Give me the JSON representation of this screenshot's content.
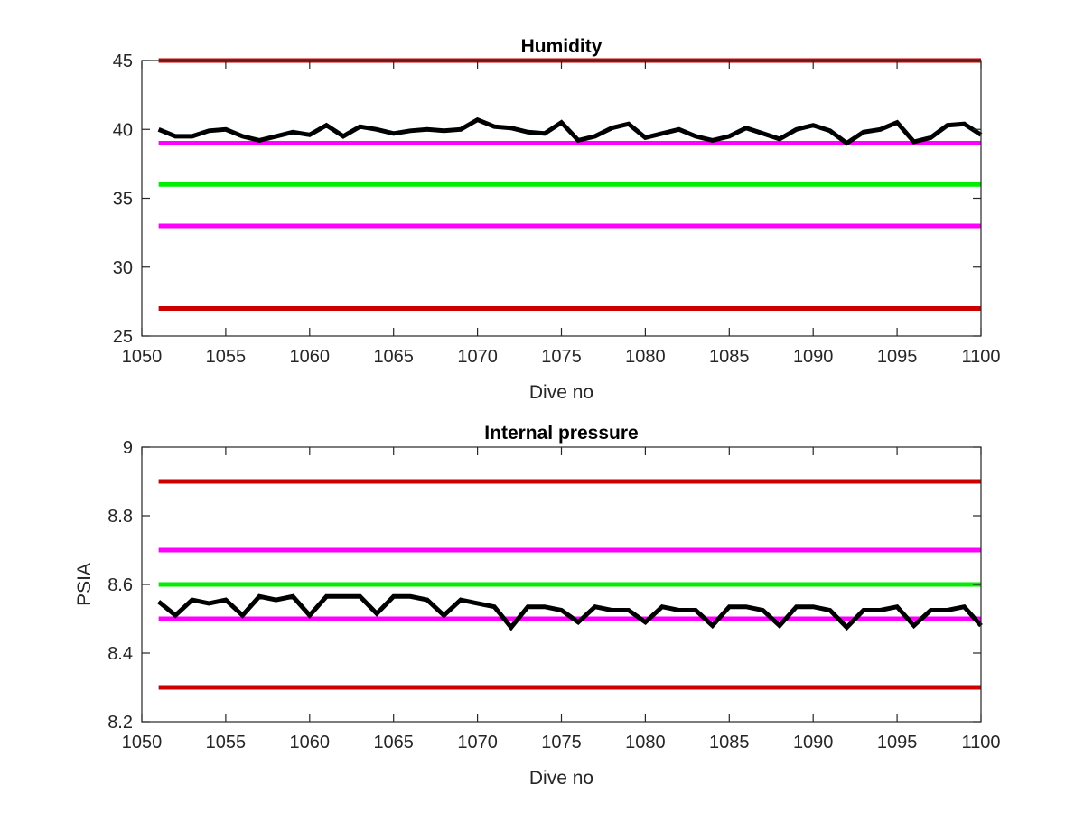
{
  "colors": {
    "data_line": "#000000",
    "red_limit": "#cc0000",
    "magenta_limit": "#ff00ff",
    "green_target": "#00ee00",
    "axis": "#262626"
  },
  "chart_data": [
    {
      "type": "line",
      "title": "Humidity",
      "xlabel": "Dive no",
      "ylabel": "",
      "xlim": [
        1050,
        1100
      ],
      "ylim": [
        25,
        45
      ],
      "xticks": [
        "1050",
        "1055",
        "1060",
        "1065",
        "1070",
        "1075",
        "1080",
        "1085",
        "1090",
        "1095",
        "1100"
      ],
      "yticks": [
        "25",
        "30",
        "35",
        "40",
        "45"
      ],
      "grid": false,
      "series": [
        {
          "color": "#000000",
          "x": [
            1051,
            1052,
            1053,
            1054,
            1055,
            1056,
            1057,
            1058,
            1059,
            1060,
            1061,
            1062,
            1063,
            1064,
            1065,
            1066,
            1067,
            1068,
            1069,
            1070,
            1071,
            1072,
            1073,
            1074,
            1075,
            1076,
            1077,
            1078,
            1079,
            1080,
            1081,
            1082,
            1083,
            1084,
            1085,
            1086,
            1087,
            1088,
            1089,
            1090,
            1091,
            1092,
            1093,
            1094,
            1095,
            1096,
            1097,
            1098,
            1099,
            1100
          ],
          "y": [
            40.0,
            39.5,
            39.5,
            39.9,
            40.0,
            39.5,
            39.2,
            39.5,
            39.8,
            39.6,
            40.3,
            39.5,
            40.2,
            40.0,
            39.7,
            39.9,
            40.0,
            39.9,
            40.0,
            40.7,
            40.2,
            40.1,
            39.8,
            39.7,
            40.5,
            39.2,
            39.5,
            40.1,
            40.4,
            39.4,
            39.7,
            40.0,
            39.5,
            39.2,
            39.5,
            40.1,
            39.7,
            39.3,
            40.0,
            40.3,
            39.9,
            39.0,
            39.8,
            40.0,
            40.5,
            39.1,
            39.4,
            40.3,
            40.4,
            39.6
          ]
        },
        {
          "color": "#cc0000",
          "x": [
            1051,
            1100
          ],
          "y": [
            45,
            45
          ]
        },
        {
          "color": "#ff00ff",
          "x": [
            1051,
            1100
          ],
          "y": [
            39,
            39
          ]
        },
        {
          "color": "#00ee00",
          "x": [
            1051,
            1100
          ],
          "y": [
            36,
            36
          ]
        },
        {
          "color": "#ff00ff",
          "x": [
            1051,
            1100
          ],
          "y": [
            33,
            33
          ]
        },
        {
          "color": "#cc0000",
          "x": [
            1051,
            1100
          ],
          "y": [
            27,
            27
          ]
        }
      ]
    },
    {
      "type": "line",
      "title": "Internal pressure",
      "xlabel": "Dive no",
      "ylabel": "PSIA",
      "xlim": [
        1050,
        1100
      ],
      "ylim": [
        8.2,
        9
      ],
      "xticks": [
        "1050",
        "1055",
        "1060",
        "1065",
        "1070",
        "1075",
        "1080",
        "1085",
        "1090",
        "1095",
        "1100"
      ],
      "yticks": [
        "8.2",
        "8.4",
        "8.6",
        "8.8",
        "9"
      ],
      "grid": false,
      "series": [
        {
          "color": "#000000",
          "x": [
            1051,
            1052,
            1053,
            1054,
            1055,
            1056,
            1057,
            1058,
            1059,
            1060,
            1061,
            1062,
            1063,
            1064,
            1065,
            1066,
            1067,
            1068,
            1069,
            1070,
            1071,
            1072,
            1073,
            1074,
            1075,
            1076,
            1077,
            1078,
            1079,
            1080,
            1081,
            1082,
            1083,
            1084,
            1085,
            1086,
            1087,
            1088,
            1089,
            1090,
            1091,
            1092,
            1093,
            1094,
            1095,
            1096,
            1097,
            1098,
            1099,
            1100
          ],
          "y": [
            8.55,
            8.51,
            8.555,
            8.545,
            8.555,
            8.51,
            8.565,
            8.555,
            8.565,
            8.51,
            8.565,
            8.565,
            8.565,
            8.515,
            8.565,
            8.565,
            8.555,
            8.51,
            8.555,
            8.545,
            8.535,
            8.475,
            8.535,
            8.535,
            8.525,
            8.49,
            8.535,
            8.525,
            8.525,
            8.49,
            8.535,
            8.525,
            8.525,
            8.48,
            8.535,
            8.535,
            8.525,
            8.48,
            8.535,
            8.535,
            8.525,
            8.475,
            8.525,
            8.525,
            8.535,
            8.48,
            8.525,
            8.525,
            8.535,
            8.48
          ]
        },
        {
          "color": "#cc0000",
          "x": [
            1051,
            1100
          ],
          "y": [
            8.9,
            8.9
          ]
        },
        {
          "color": "#ff00ff",
          "x": [
            1051,
            1100
          ],
          "y": [
            8.7,
            8.7
          ]
        },
        {
          "color": "#00ee00",
          "x": [
            1051,
            1100
          ],
          "y": [
            8.6,
            8.6
          ]
        },
        {
          "color": "#ff00ff",
          "x": [
            1051,
            1100
          ],
          "y": [
            8.5,
            8.5
          ]
        },
        {
          "color": "#cc0000",
          "x": [
            1051,
            1100
          ],
          "y": [
            8.3,
            8.3
          ]
        }
      ]
    }
  ]
}
